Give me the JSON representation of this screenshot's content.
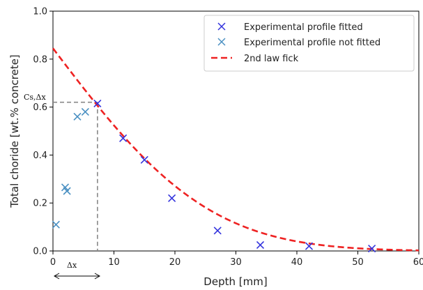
{
  "chart_data": {
    "type": "scatter",
    "xlabel": "Depth [mm]",
    "ylabel": "Total choride [wt.% concrete]",
    "xlim": [
      0,
      60
    ],
    "ylim": [
      0,
      1.0
    ],
    "xticks": [
      0,
      10,
      20,
      30,
      40,
      50,
      60
    ],
    "yticks": [
      "0.0",
      "0.2",
      "0.4",
      "0.6",
      "0.8",
      "1.0"
    ],
    "legend_position": "top-right",
    "series": [
      {
        "name": "Experimental profile fitted",
        "marker": "x",
        "color": "#3333dd",
        "x": [
          7.3,
          11.5,
          15.0,
          19.5,
          27.0,
          34.0,
          42.0,
          52.3
        ],
        "y": [
          0.615,
          0.47,
          0.38,
          0.22,
          0.085,
          0.025,
          0.02,
          0.01
        ]
      },
      {
        "name": "Experimental profile not fitted",
        "marker": "x",
        "color": "#4a90c2",
        "x": [
          0.5,
          2.0,
          2.3,
          4.0,
          5.3
        ],
        "y": [
          0.11,
          0.265,
          0.25,
          0.56,
          0.58
        ]
      },
      {
        "name": "2nd law fick",
        "marker": "dashed-line",
        "color": "#ee2222",
        "curve": {
          "C0": 0.845,
          "scale_mm": 28.5
        }
      }
    ],
    "annotations": {
      "cs_label": "Cs,Δx",
      "dx_label": "Δx",
      "guide_x": 7.3,
      "guide_y": 0.62
    }
  }
}
